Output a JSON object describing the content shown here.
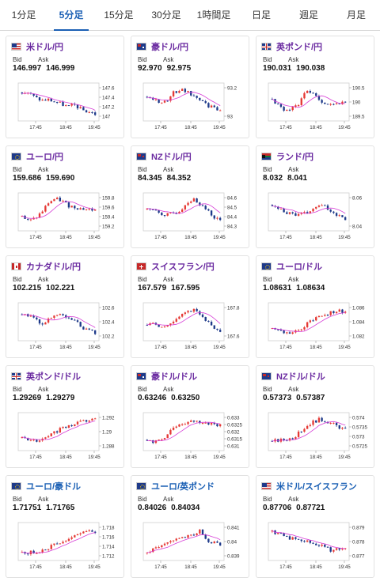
{
  "tabs": [
    "1分足",
    "5分足",
    "15分足",
    "30分足",
    "1時間足",
    "日足",
    "週足",
    "月足"
  ],
  "active_tab": "5分足",
  "bid_label": "Bid",
  "ask_label": "Ask",
  "x_ticks": [
    "17:45",
    "18:45",
    "19:45"
  ],
  "colors": {
    "up": "#e53935",
    "down": "#1e3a8a",
    "ma": "#d63bd6",
    "accent": "#1a5fb4",
    "pair_text": "#6a2aa0"
  },
  "cards": [
    {
      "pair": "米ドル/円",
      "flag": "us",
      "bid": "146.997",
      "ask": "146.999",
      "yticks": [
        "147.6",
        "147.4",
        "147.2",
        "147"
      ]
    },
    {
      "pair": "豪ドル/円",
      "flag": "au",
      "bid": "92.970",
      "ask": "92.975",
      "yticks": [
        "93.2",
        "93"
      ]
    },
    {
      "pair": "英ポンド/円",
      "flag": "gb",
      "bid": "190.031",
      "ask": "190.038",
      "yticks": [
        "190.5",
        "190",
        "189.5"
      ]
    },
    {
      "pair": "ユーロ/円",
      "flag": "eu",
      "bid": "159.686",
      "ask": "159.690",
      "yticks": [
        "159.8",
        "159.6",
        "159.4",
        "159.2"
      ]
    },
    {
      "pair": "NZドル/円",
      "flag": "nz",
      "bid": "84.345",
      "ask": "84.352",
      "yticks": [
        "84.6",
        "84.5",
        "84.4",
        "84.3"
      ]
    },
    {
      "pair": "ランド/円",
      "flag": "za",
      "bid": "8.032",
      "ask": "8.041",
      "yticks": [
        "8.06",
        "8.04"
      ]
    },
    {
      "pair": "カナダドル/円",
      "flag": "ca",
      "bid": "102.215",
      "ask": "102.221",
      "yticks": [
        "102.6",
        "102.4",
        "102.2"
      ]
    },
    {
      "pair": "スイスフラン/円",
      "flag": "ch",
      "bid": "167.579",
      "ask": "167.595",
      "yticks": [
        "167.8",
        "167.6"
      ]
    },
    {
      "pair": "ユーロ/ドル",
      "flag": "eu",
      "bid": "1.08631",
      "ask": "1.08634",
      "yticks": [
        "1.086",
        "1.084",
        "1.082"
      ]
    },
    {
      "pair": "英ポンド/ドル",
      "flag": "gb",
      "bid": "1.29269",
      "ask": "1.29279",
      "yticks": [
        "1.292",
        "1.29",
        "1.288"
      ]
    },
    {
      "pair": "豪ドル/ドル",
      "flag": "au",
      "bid": "0.63246",
      "ask": "0.63250",
      "yticks": [
        "0.633",
        "0.6325",
        "0.632",
        "0.6315",
        "0.631"
      ]
    },
    {
      "pair": "NZドル/ドル",
      "flag": "nz",
      "bid": "0.57373",
      "ask": "0.57387",
      "yticks": [
        "0.574",
        "0.5735",
        "0.573",
        "0.5725"
      ]
    },
    {
      "pair": "ユーロ/豪ドル",
      "flag": "eu",
      "bid": "1.71751",
      "ask": "1.71765",
      "yticks": [
        "1.718",
        "1.716",
        "1.714",
        "1.712"
      ]
    },
    {
      "pair": "ユーロ/英ポンド",
      "flag": "eu",
      "bid": "0.84026",
      "ask": "0.84034",
      "yticks": [
        "0.841",
        "0.84",
        "0.839"
      ]
    },
    {
      "pair": "米ドル/スイスフラン",
      "flag": "us",
      "bid": "0.87706",
      "ask": "0.87721",
      "yticks": [
        "0.879",
        "0.878",
        "0.877"
      ]
    }
  ]
}
